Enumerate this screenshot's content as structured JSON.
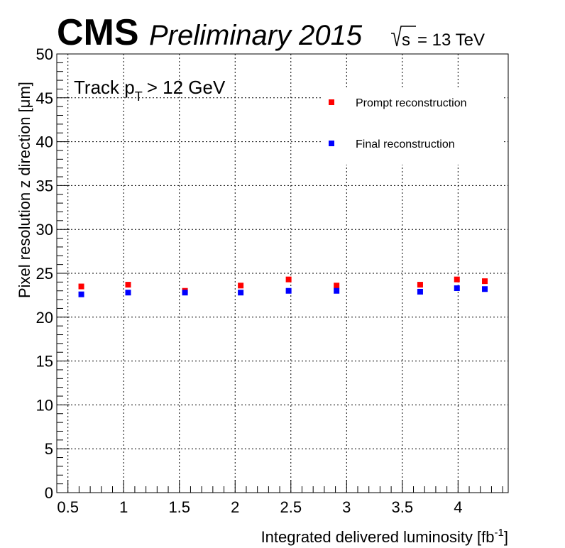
{
  "header": {
    "experiment": "CMS",
    "status": "Preliminary 2015",
    "energy_sqrt": "s",
    "energy_value": "= 13 TeV"
  },
  "annotation": {
    "text": "Track p",
    "subscript": "T",
    "cut": "> 12 GeV"
  },
  "chart_data": {
    "type": "scatter",
    "title": "",
    "xlabel": "Integrated delivered luminosity [fb",
    "xlabel_sup": "-1",
    "xlabel_suffix": "]",
    "ylabel": "Pixel resolution z direction [μm]",
    "xlim": [
      0.4,
      4.45
    ],
    "ylim": [
      0,
      50
    ],
    "x_ticks": [
      0.5,
      1,
      1.5,
      2,
      2.5,
      3,
      3.5,
      4
    ],
    "x_tick_labels": [
      "0.5",
      "1",
      "1.5",
      "2",
      "2.5",
      "3",
      "3.5",
      "4"
    ],
    "y_ticks": [
      0,
      5,
      10,
      15,
      20,
      25,
      30,
      35,
      40,
      45,
      50
    ],
    "y_tick_labels": [
      "0",
      "5",
      "10",
      "15",
      "20",
      "25",
      "30",
      "35",
      "40",
      "45",
      "50"
    ],
    "grid": true,
    "legend_position": "top-right",
    "series": [
      {
        "name": "Prompt reconstruction",
        "color": "#ff0000",
        "marker": "square",
        "x": [
          0.62,
          1.04,
          1.55,
          2.05,
          2.48,
          2.91,
          3.66,
          3.99,
          4.24
        ],
        "y": [
          23.5,
          23.7,
          23.0,
          23.6,
          24.3,
          23.6,
          23.7,
          24.3,
          24.1
        ]
      },
      {
        "name": "Final reconstruction",
        "color": "#0000ff",
        "marker": "square",
        "x": [
          0.62,
          1.04,
          1.55,
          2.05,
          2.48,
          2.91,
          3.66,
          3.99,
          4.24
        ],
        "y": [
          22.6,
          22.8,
          22.8,
          22.8,
          23.0,
          23.0,
          22.9,
          23.3,
          23.2
        ]
      }
    ]
  }
}
